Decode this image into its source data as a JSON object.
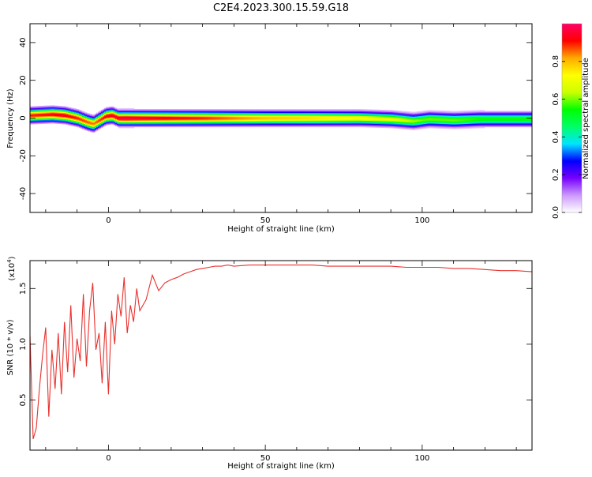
{
  "title": "C2E4.2023.300.15.59.G18",
  "colorbar": {
    "label": "Normalized spectral amplitude",
    "ticks": [
      "0.0",
      "0.2",
      "0.4",
      "0.6",
      "0.8"
    ],
    "tick_values": [
      0.0,
      0.2,
      0.4,
      0.6,
      0.8
    ],
    "range": [
      0,
      1
    ],
    "stops": [
      "#ffffff",
      "#cc99ff",
      "#7700ff",
      "#0000ff",
      "#00e5ff",
      "#00ff66",
      "#00ff00",
      "#ccff00",
      "#ffff00",
      "#ffaa00",
      "#ff0000",
      "#ff0066"
    ]
  },
  "chart_data": [
    {
      "type": "heatmap",
      "xlabel": "Height of straight line (km)",
      "ylabel": "Frequency (Hz)",
      "xlim": [
        -25,
        135
      ],
      "ylim": [
        -50,
        50
      ],
      "x_ticks": [
        "0",
        "50",
        "100"
      ],
      "x_tick_values": [
        0,
        50,
        100
      ],
      "y_ticks": [
        "40",
        "20",
        "0",
        "-20",
        "-40"
      ],
      "y_tick_values": [
        40,
        20,
        0,
        -20,
        -40
      ],
      "grid": false,
      "ridge_frequency": {
        "x": [
          -25,
          -18,
          -14,
          -10,
          -7,
          -5,
          -3,
          -1,
          1,
          3,
          6,
          10,
          20,
          40,
          60,
          80,
          90,
          97,
          102,
          110,
          118,
          125,
          135
        ],
        "y": [
          1.5,
          2,
          1.5,
          0,
          -2,
          -3,
          -1,
          1,
          1.5,
          0,
          0,
          0,
          0,
          0,
          0,
          0,
          -0.5,
          -1.5,
          -0.5,
          -1,
          -0.5,
          -0.5,
          -0.5
        ]
      },
      "peak_amplitude": {
        "x": [
          -25,
          -20,
          -15,
          -10,
          -5,
          0,
          5,
          10,
          20,
          30,
          40,
          50,
          60,
          70,
          80,
          90,
          100,
          110,
          120,
          135
        ],
        "y": [
          0.9,
          0.92,
          0.95,
          0.9,
          0.85,
          0.95,
          0.98,
          0.96,
          0.93,
          0.9,
          0.85,
          0.8,
          0.78,
          0.75,
          0.72,
          0.7,
          0.6,
          0.6,
          0.55,
          0.55
        ]
      },
      "band_halfwidth_hz": 4
    },
    {
      "type": "line",
      "xlabel": "Height of straight line (km)",
      "ylabel": "SNR (10 * v/v)",
      "y_scale_label": "(x10",
      "y_scale_exponent": "4",
      "y_scale_close": ")",
      "xlim": [
        -25,
        135
      ],
      "ylim": [
        0.05,
        1.75
      ],
      "x_ticks": [
        "0",
        "50",
        "100"
      ],
      "x_tick_values": [
        0,
        50,
        100
      ],
      "y_ticks": [
        "1.5",
        "1.0",
        "0.5"
      ],
      "y_tick_values": [
        1.5,
        1.0,
        0.5
      ],
      "grid": false,
      "series": [
        {
          "color": "#e8312d",
          "x": [
            -25,
            -24,
            -23,
            -22,
            -21,
            -20,
            -19,
            -18,
            -17,
            -16,
            -15,
            -14,
            -13,
            -12,
            -11,
            -10,
            -9,
            -8,
            -7,
            -6,
            -5,
            -4,
            -3,
            -2,
            -1,
            0,
            1,
            2,
            3,
            4,
            5,
            6,
            7,
            8,
            9,
            10,
            12,
            14,
            16,
            18,
            20,
            22,
            24,
            26,
            28,
            30,
            32,
            34,
            36,
            38,
            40,
            45,
            50,
            55,
            60,
            65,
            70,
            75,
            80,
            85,
            90,
            95,
            100,
            105,
            110,
            115,
            120,
            125,
            130,
            135
          ],
          "y": [
            1.08,
            0.15,
            0.25,
            0.6,
            0.9,
            1.15,
            0.35,
            0.95,
            0.6,
            1.1,
            0.55,
            1.2,
            0.75,
            1.35,
            0.7,
            1.05,
            0.85,
            1.45,
            0.8,
            1.3,
            1.55,
            0.95,
            1.1,
            0.65,
            1.2,
            0.55,
            1.3,
            1.0,
            1.45,
            1.25,
            1.6,
            1.1,
            1.35,
            1.2,
            1.5,
            1.3,
            1.4,
            1.62,
            1.48,
            1.55,
            1.58,
            1.6,
            1.63,
            1.65,
            1.67,
            1.68,
            1.69,
            1.7,
            1.7,
            1.71,
            1.7,
            1.71,
            1.71,
            1.71,
            1.71,
            1.71,
            1.7,
            1.7,
            1.7,
            1.7,
            1.7,
            1.69,
            1.69,
            1.69,
            1.68,
            1.68,
            1.67,
            1.66,
            1.66,
            1.65
          ]
        }
      ]
    }
  ]
}
